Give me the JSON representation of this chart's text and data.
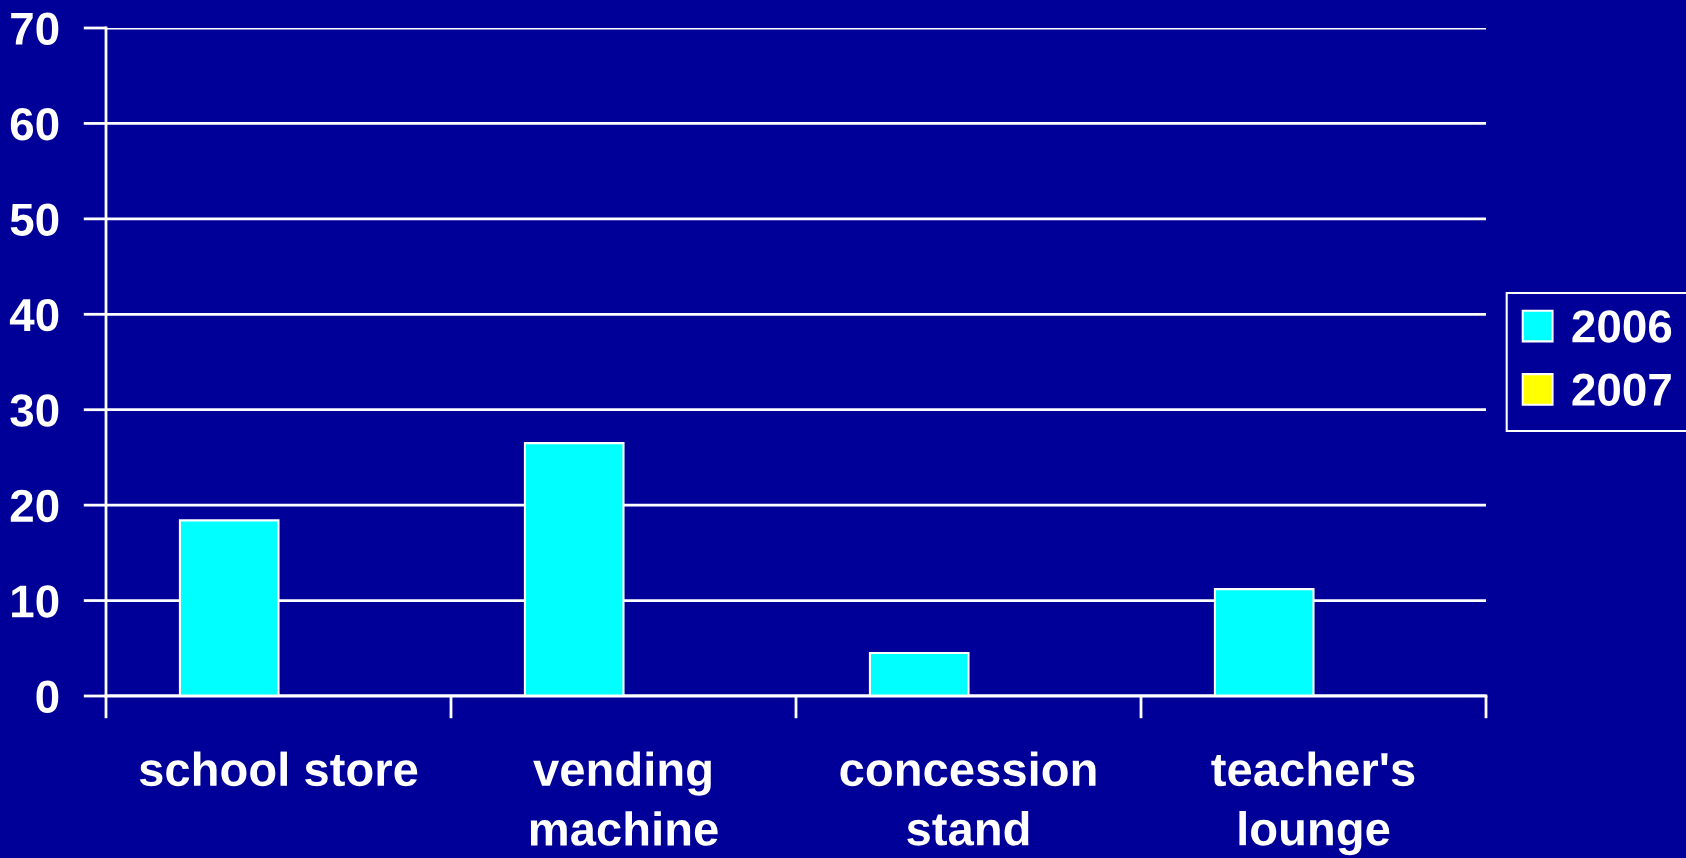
{
  "chart_data": {
    "type": "bar",
    "categories": [
      "school store",
      "vending machine",
      "concession stand",
      "teacher's lounge"
    ],
    "series": [
      {
        "name": "2006",
        "color": "#00ffff",
        "values": [
          18.4,
          26.5,
          4.5,
          11.2
        ]
      },
      {
        "name": "2007",
        "color": "#ffff00",
        "values": [
          null,
          null,
          null,
          null
        ]
      }
    ],
    "ylim": [
      0,
      70
    ],
    "yticks": [
      0,
      10,
      20,
      30,
      40,
      50,
      60,
      70
    ],
    "grid": "y",
    "legend": "right"
  }
}
